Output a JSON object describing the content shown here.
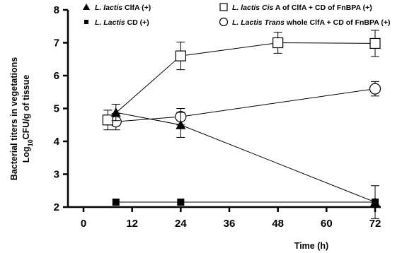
{
  "chart_data": {
    "type": "line",
    "xlabel": "Time (h)",
    "ylabel_line1": "Bacterial titers in vegetations",
    "ylabel_line2_prefix": "Log",
    "ylabel_line2_sub": "10",
    "ylabel_line2_suffix": "CFU/g of tissue",
    "xlim": [
      0,
      72
    ],
    "ylim": [
      2,
      8
    ],
    "x_ticks": [
      0,
      12,
      24,
      36,
      48,
      60,
      72
    ],
    "y_ticks": [
      2,
      3,
      4,
      5,
      6,
      7,
      8
    ],
    "legend_position": "top",
    "series": [
      {
        "legend_italic": "L. lactis",
        "legend_rest": " ClfA (+)",
        "marker": "filled-triangle",
        "x": [
          8,
          24,
          72
        ],
        "y": [
          4.88,
          4.5,
          2.15
        ],
        "err": [
          0.25,
          0.38,
          0.5
        ]
      },
      {
        "legend_italic": "L. Lactis",
        "legend_rest": " CD (+)",
        "marker": "filled-square",
        "x": [
          8,
          24,
          72
        ],
        "y": [
          2.15,
          2.15,
          2.15
        ],
        "err": [
          0,
          0,
          0
        ]
      },
      {
        "legend_italic": "L. lactis Cis",
        "legend_rest": " A of ClfA + CD of FnBPA (+)",
        "marker": "open-square",
        "x": [
          6,
          24,
          48,
          72
        ],
        "y": [
          4.65,
          6.6,
          7.0,
          6.98
        ],
        "err": [
          0.3,
          0.42,
          0.32,
          0.4
        ]
      },
      {
        "legend_italic": "L. Lactis Trans",
        "legend_rest": " whole ClfA + CD of FnBPA (+)",
        "marker": "open-circle",
        "x": [
          8,
          24,
          72
        ],
        "y": [
          4.6,
          4.75,
          5.6
        ],
        "err": [
          0.25,
          0.25,
          0.22
        ]
      }
    ]
  }
}
